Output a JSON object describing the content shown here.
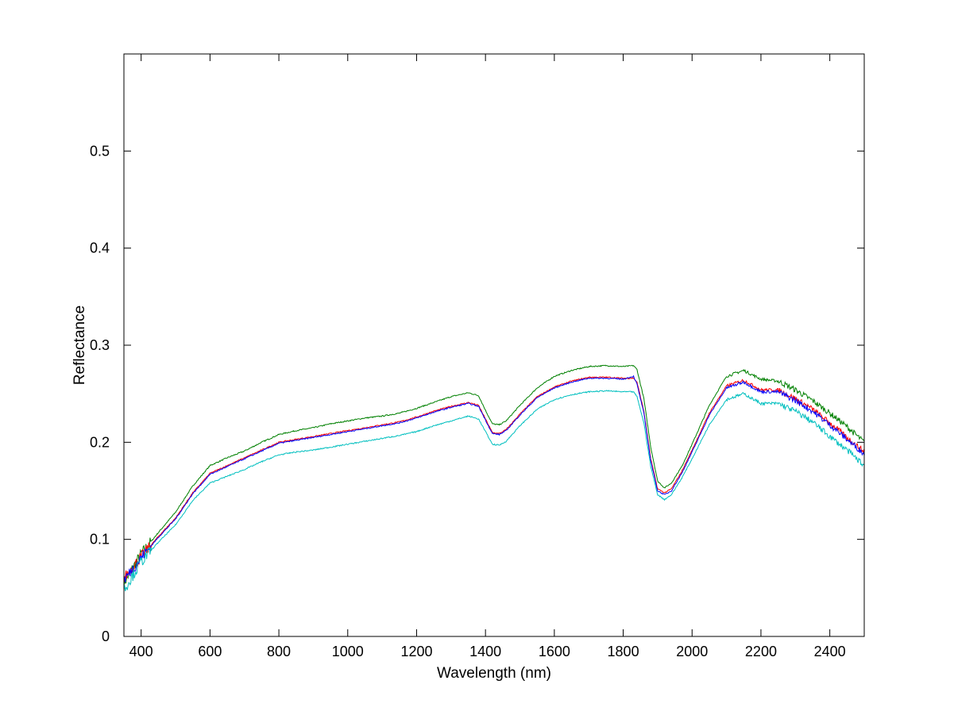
{
  "chart_data": {
    "type": "line",
    "title": "",
    "xlabel": "Wavelength (nm)",
    "ylabel": "Reflectance",
    "xlim": [
      350,
      2500
    ],
    "ylim": [
      0,
      0.6
    ],
    "x_ticks": [
      400,
      600,
      800,
      1000,
      1200,
      1400,
      1600,
      1800,
      2000,
      2200,
      2400
    ],
    "y_ticks": [
      0,
      0.1,
      0.2,
      0.3,
      0.4,
      0.5
    ],
    "y_tick_labels": [
      "0",
      "0.1",
      "0.2",
      "0.3",
      "0.4",
      "0.5"
    ],
    "grid": false,
    "legend": "none",
    "series": [
      {
        "color": "#008000",
        "x": [
          350,
          400,
          450,
          500,
          550,
          600,
          650,
          700,
          750,
          800,
          850,
          900,
          950,
          1000,
          1050,
          1100,
          1150,
          1200,
          1250,
          1300,
          1350,
          1380,
          1400,
          1420,
          1440,
          1460,
          1500,
          1550,
          1600,
          1650,
          1700,
          1750,
          1800,
          1830,
          1840,
          1860,
          1880,
          1900,
          1920,
          1940,
          1970,
          2000,
          2050,
          2100,
          2150,
          2200,
          2250,
          2300,
          2350,
          2400,
          2450,
          2500
        ],
        "y": [
          0.055,
          0.085,
          0.107,
          0.128,
          0.155,
          0.176,
          0.184,
          0.191,
          0.2,
          0.208,
          0.212,
          0.215,
          0.219,
          0.222,
          0.225,
          0.227,
          0.23,
          0.235,
          0.241,
          0.247,
          0.251,
          0.248,
          0.233,
          0.219,
          0.218,
          0.222,
          0.238,
          0.256,
          0.268,
          0.274,
          0.278,
          0.279,
          0.278,
          0.279,
          0.275,
          0.245,
          0.195,
          0.16,
          0.153,
          0.158,
          0.175,
          0.198,
          0.238,
          0.268,
          0.274,
          0.265,
          0.263,
          0.254,
          0.243,
          0.23,
          0.216,
          0.2
        ]
      },
      {
        "color": "#ff0000",
        "x": [
          350,
          400,
          450,
          500,
          550,
          600,
          650,
          700,
          750,
          800,
          850,
          900,
          950,
          1000,
          1050,
          1100,
          1150,
          1200,
          1250,
          1300,
          1350,
          1380,
          1400,
          1420,
          1440,
          1460,
          1500,
          1550,
          1600,
          1650,
          1700,
          1750,
          1800,
          1830,
          1840,
          1860,
          1880,
          1900,
          1920,
          1940,
          1970,
          2000,
          2050,
          2100,
          2150,
          2200,
          2250,
          2300,
          2350,
          2400,
          2450,
          2500
        ],
        "y": [
          0.06,
          0.082,
          0.103,
          0.122,
          0.148,
          0.168,
          0.176,
          0.184,
          0.192,
          0.2,
          0.203,
          0.206,
          0.209,
          0.212,
          0.215,
          0.218,
          0.221,
          0.226,
          0.232,
          0.237,
          0.241,
          0.238,
          0.224,
          0.21,
          0.209,
          0.213,
          0.229,
          0.247,
          0.257,
          0.263,
          0.267,
          0.267,
          0.266,
          0.266,
          0.262,
          0.232,
          0.183,
          0.152,
          0.148,
          0.152,
          0.17,
          0.192,
          0.23,
          0.258,
          0.264,
          0.254,
          0.254,
          0.245,
          0.234,
          0.22,
          0.205,
          0.19
        ]
      },
      {
        "color": "#0000ff",
        "x": [
          350,
          400,
          450,
          500,
          550,
          600,
          650,
          700,
          750,
          800,
          850,
          900,
          950,
          1000,
          1050,
          1100,
          1150,
          1200,
          1250,
          1300,
          1350,
          1380,
          1400,
          1420,
          1440,
          1460,
          1500,
          1550,
          1600,
          1650,
          1700,
          1750,
          1800,
          1830,
          1840,
          1860,
          1880,
          1900,
          1920,
          1940,
          1970,
          2000,
          2050,
          2100,
          2150,
          2200,
          2250,
          2300,
          2350,
          2400,
          2450,
          2500
        ],
        "y": [
          0.058,
          0.081,
          0.102,
          0.121,
          0.147,
          0.167,
          0.175,
          0.183,
          0.191,
          0.199,
          0.202,
          0.205,
          0.208,
          0.211,
          0.214,
          0.217,
          0.22,
          0.225,
          0.231,
          0.236,
          0.24,
          0.237,
          0.223,
          0.209,
          0.208,
          0.212,
          0.228,
          0.246,
          0.256,
          0.262,
          0.266,
          0.266,
          0.265,
          0.268,
          0.26,
          0.23,
          0.181,
          0.15,
          0.146,
          0.15,
          0.168,
          0.19,
          0.228,
          0.256,
          0.262,
          0.252,
          0.252,
          0.243,
          0.232,
          0.218,
          0.203,
          0.188
        ]
      },
      {
        "color": "#00bfbf",
        "x": [
          350,
          400,
          450,
          500,
          550,
          600,
          650,
          700,
          750,
          800,
          850,
          900,
          950,
          1000,
          1050,
          1100,
          1150,
          1200,
          1250,
          1300,
          1350,
          1380,
          1400,
          1420,
          1440,
          1460,
          1500,
          1550,
          1600,
          1650,
          1700,
          1750,
          1800,
          1830,
          1840,
          1860,
          1880,
          1900,
          1920,
          1940,
          1970,
          2000,
          2050,
          2100,
          2150,
          2200,
          2250,
          2300,
          2350,
          2400,
          2450,
          2500
        ],
        "y": [
          0.048,
          0.077,
          0.097,
          0.115,
          0.14,
          0.158,
          0.165,
          0.172,
          0.18,
          0.187,
          0.19,
          0.192,
          0.195,
          0.198,
          0.201,
          0.204,
          0.207,
          0.211,
          0.217,
          0.222,
          0.227,
          0.224,
          0.211,
          0.198,
          0.197,
          0.201,
          0.217,
          0.234,
          0.244,
          0.249,
          0.252,
          0.253,
          0.252,
          0.252,
          0.247,
          0.22,
          0.175,
          0.146,
          0.141,
          0.146,
          0.163,
          0.183,
          0.218,
          0.244,
          0.25,
          0.24,
          0.24,
          0.232,
          0.221,
          0.206,
          0.192,
          0.176
        ]
      }
    ]
  }
}
